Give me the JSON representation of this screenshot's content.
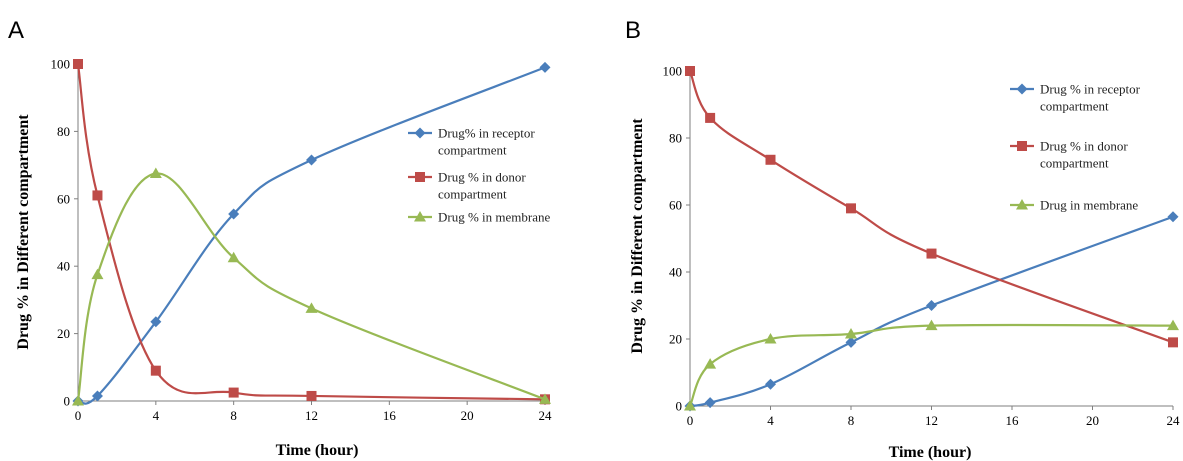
{
  "chart_data": [
    {
      "type": "line",
      "panel_label": "A",
      "xlabel": "Time (hour)",
      "ylabel": "Drug % in Different compartment",
      "x_ticks": [
        0,
        4,
        8,
        12,
        16,
        20,
        24
      ],
      "y_ticks": [
        0,
        20,
        40,
        60,
        80,
        100
      ],
      "xlim": [
        0,
        24
      ],
      "ylim": [
        0,
        100
      ],
      "legend_position": "right",
      "series": [
        {
          "name": "Drug% in receptor compartment",
          "legend_lines": [
            "Drug% in receptor",
            "compartment"
          ],
          "color": "#4a7ebb",
          "marker": "diamond",
          "x": [
            0,
            1,
            4,
            8,
            12,
            24
          ],
          "y": [
            0,
            1.5,
            23.5,
            55.5,
            71.5,
            99
          ]
        },
        {
          "name": "Drug % in donor compartment",
          "legend_lines": [
            "Drug % in donor",
            "compartment"
          ],
          "color": "#be4b48",
          "marker": "square",
          "x": [
            0,
            1,
            4,
            8,
            12,
            24
          ],
          "y": [
            100,
            61,
            9,
            2.5,
            1.5,
            0.5
          ]
        },
        {
          "name": "Drug % in membrane",
          "legend_lines": [
            "Drug % in membrane"
          ],
          "color": "#98b954",
          "marker": "triangle",
          "x": [
            0,
            1,
            4,
            8,
            12,
            24
          ],
          "y": [
            0,
            37.5,
            67.5,
            42.5,
            27.5,
            0.5
          ]
        }
      ]
    },
    {
      "type": "line",
      "panel_label": "B",
      "xlabel": "Time (hour)",
      "ylabel": "Drug % in Different compartment",
      "x_ticks": [
        0,
        4,
        8,
        12,
        16,
        20,
        24
      ],
      "y_ticks": [
        0,
        20,
        40,
        60,
        80,
        100
      ],
      "xlim": [
        0,
        24
      ],
      "ylim": [
        0,
        100
      ],
      "legend_position": "right",
      "series": [
        {
          "name": "Drug % in receptor compartment",
          "legend_lines": [
            "Drug % in receptor",
            "compartment"
          ],
          "color": "#4a7ebb",
          "marker": "diamond",
          "x": [
            0,
            1,
            4,
            8,
            12,
            24
          ],
          "y": [
            0,
            1,
            6.5,
            19,
            30,
            56.5
          ]
        },
        {
          "name": "Drug % in donor compartment",
          "legend_lines": [
            "Drug % in donor",
            "compartment"
          ],
          "color": "#be4b48",
          "marker": "square",
          "x": [
            0,
            1,
            4,
            8,
            12,
            24
          ],
          "y": [
            100,
            86,
            73.5,
            59,
            45.5,
            19
          ]
        },
        {
          "name": "Drug in membrane",
          "legend_lines": [
            "Drug in membrane"
          ],
          "color": "#98b954",
          "marker": "triangle",
          "x": [
            0,
            1,
            4,
            8,
            12,
            24
          ],
          "y": [
            0,
            12.5,
            20,
            21.5,
            24,
            24
          ]
        }
      ]
    }
  ]
}
